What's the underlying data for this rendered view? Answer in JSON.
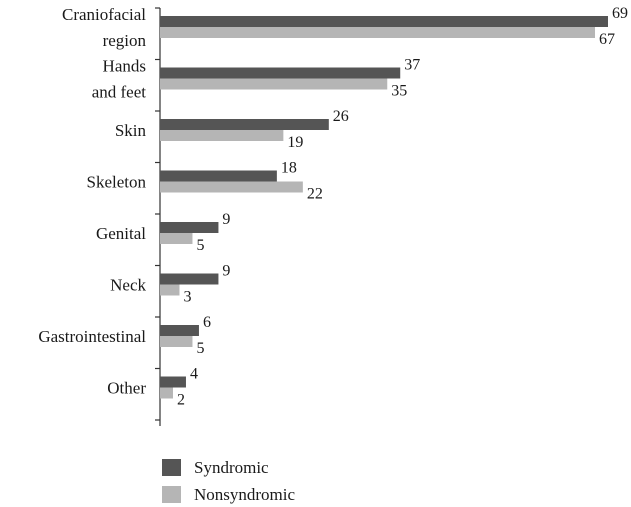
{
  "chart_data": {
    "type": "bar",
    "orientation": "horizontal",
    "categories": [
      [
        "Craniofacial",
        "region"
      ],
      [
        "Hands",
        "and feet"
      ],
      [
        "Skin"
      ],
      [
        "Skeleton"
      ],
      [
        "Genital"
      ],
      [
        "Neck"
      ],
      [
        "Gastrointestinal"
      ],
      [
        "Other"
      ]
    ],
    "series": [
      {
        "name": "Syndromic",
        "color": "#555555",
        "values": [
          69,
          37,
          26,
          18,
          9,
          9,
          6,
          4
        ]
      },
      {
        "name": "Nonsyndromic",
        "color": "#b5b5b5",
        "values": [
          67,
          35,
          19,
          22,
          5,
          3,
          5,
          2
        ]
      }
    ],
    "xlim": [
      0,
      69
    ],
    "grid": false,
    "legend_position": "bottom-left",
    "value_labels": true
  }
}
